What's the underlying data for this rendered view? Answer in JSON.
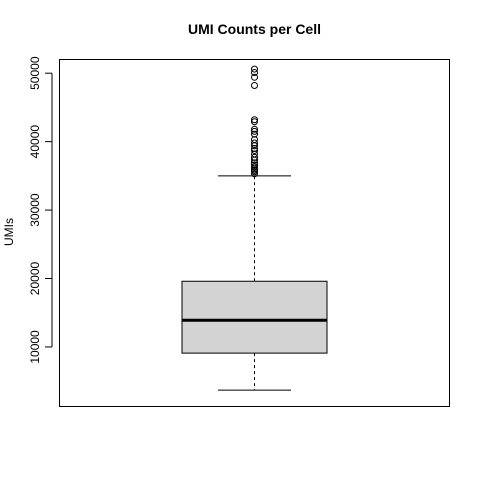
{
  "chart_data": {
    "type": "boxplot",
    "title": "UMI Counts per Cell",
    "xlabel": "",
    "ylabel": "UMIs",
    "ylim": [
      1300,
      52000
    ],
    "yticks": [
      10000,
      20000,
      30000,
      40000,
      50000
    ],
    "ytick_labels": [
      "10000",
      "20000",
      "30000",
      "40000",
      "50000"
    ],
    "grid": false,
    "box": {
      "lower_whisker": 3700,
      "q1": 9100,
      "median": 13900,
      "q3": 19600,
      "upper_whisker": 35000,
      "outliers": [
        35300,
        35600,
        35800,
        36000,
        36300,
        36600,
        36900,
        37300,
        37700,
        38200,
        38700,
        39000,
        39400,
        39800,
        40300,
        41100,
        41500,
        41800,
        42900,
        43200,
        48200,
        49400,
        50100,
        50600
      ]
    },
    "colors": {
      "box_fill": "#d3d3d3",
      "stroke": "#000000"
    }
  }
}
